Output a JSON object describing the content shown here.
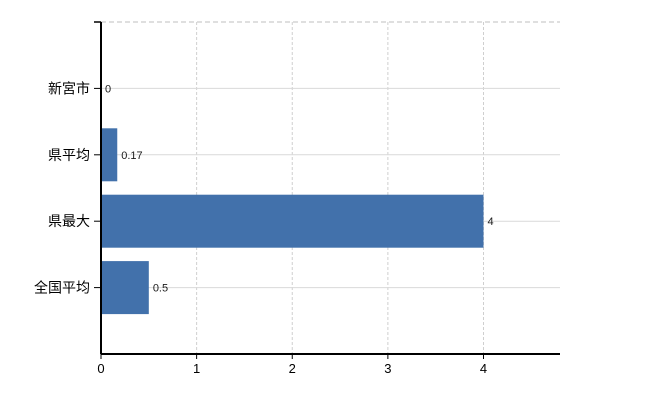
{
  "chart_data": {
    "type": "bar",
    "orientation": "horizontal",
    "categories": [
      "新宮市",
      "県平均",
      "県最大",
      "全国平均"
    ],
    "values": [
      0,
      0.17,
      4,
      0.5
    ],
    "value_labels": [
      "0",
      "0.17",
      "4",
      "0.5"
    ],
    "xticks": [
      0,
      1,
      2,
      3,
      4
    ],
    "xtick_labels": [
      "0",
      "1",
      "2",
      "3",
      "4"
    ],
    "xlim": [
      0,
      4.8
    ],
    "grid": true,
    "legend": "none",
    "plot_border_top": "dashed",
    "colors": {
      "bar": "#4271ab",
      "horizontal_gridline": "#d9d9d9",
      "vertical_gridline": "#cfcfcf",
      "plot_border": "#bfbfbf",
      "axis": "#000000",
      "category_text": "#000000",
      "tick_text": "#000000",
      "value_text": "#1a1a1a",
      "background": "#ffffff"
    }
  }
}
